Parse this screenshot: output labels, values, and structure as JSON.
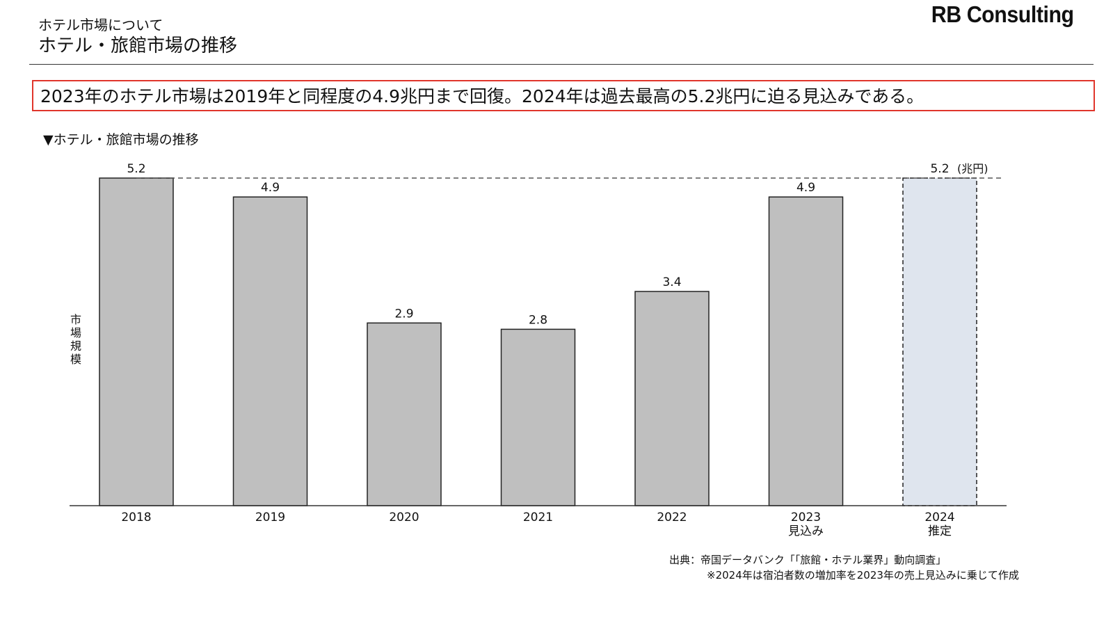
{
  "header": {
    "subtitle": "ホテル市場について",
    "title": "ホテル・旅館市場の推移",
    "logo": "RB Consulting"
  },
  "headline": "2023年のホテル市場は2019年と同程度の4.9兆円まで回復。2024年は過去最高の5.2兆円に迫る見込みである。",
  "chart_caption": "▼ホテル・旅館市場の推移",
  "source": {
    "line1": "出典：帝国データバンク「「旅館・ホテル業界」動向調査」",
    "line2": "※2024年は宿泊者数の増加率を2023年の売上見込みに乗じて作成"
  },
  "colors": {
    "bar": "#bfbfbf",
    "bar_estimate": "#dfe5ee",
    "headline_border": "#e0352b",
    "axis": "#333333"
  },
  "chart_data": {
    "type": "bar",
    "title": "",
    "ylabel": "市場規模",
    "unit_label": "(兆円)",
    "categories": [
      "2018",
      "2019",
      "2020",
      "2021",
      "2022",
      "2023",
      "2024"
    ],
    "category_sublabels": [
      "",
      "",
      "",
      "",
      "",
      "見込み",
      "推定"
    ],
    "values": [
      5.2,
      4.9,
      2.9,
      2.8,
      3.4,
      4.9,
      5.2
    ],
    "value_labels": [
      "5.2",
      "4.9",
      "2.9",
      "2.8",
      "3.4",
      "4.9",
      "5.2"
    ],
    "estimated": [
      false,
      false,
      false,
      false,
      false,
      false,
      true
    ],
    "reference_line": 5.2,
    "ylim": [
      0,
      5.2
    ],
    "grid": false
  }
}
